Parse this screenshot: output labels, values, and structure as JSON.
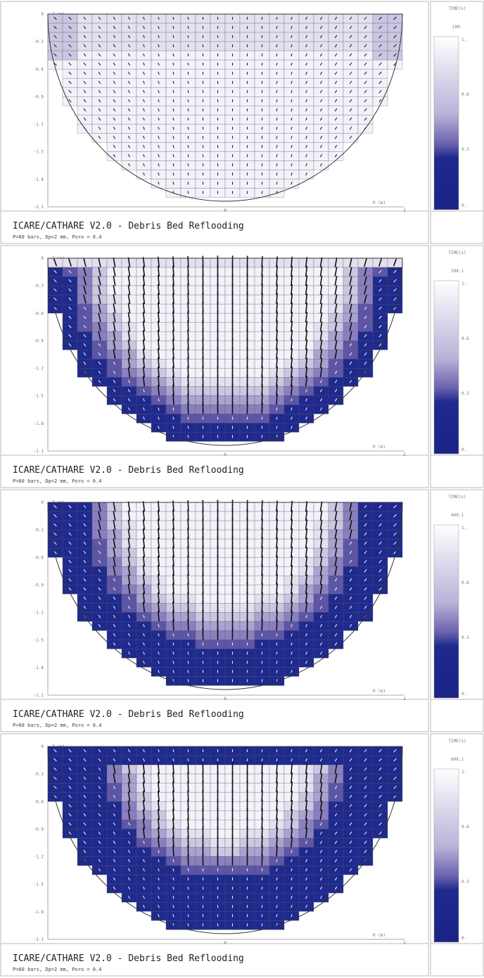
{
  "panels": [
    {
      "time_header": "TIME(s)",
      "time": "100.",
      "y_axis_label": "Z (m)",
      "x_axis_label": "R (m)",
      "y_ticks": [
        "0",
        "-0.3",
        "-0.6",
        "-0.9",
        "-1.2",
        "-1.5",
        "-1.8",
        "-2.1"
      ],
      "x_ticks": [
        "0",
        "2"
      ],
      "colorbar_ticks": [
        "1.",
        "0.6",
        "0.3",
        "0."
      ],
      "title": "ICARE/CATHARE V2.0 - Debris Bed Reflooding",
      "subtitle": "P=60 bars, Dp=2 mm, Poro = 0.4"
    },
    {
      "time_header": "TIME(s)",
      "time": "200.1",
      "y_axis_label": "Z (m)",
      "x_axis_label": "R (m)",
      "y_ticks": [
        "0",
        "-0.3",
        "-0.6",
        "-0.9",
        "-1.2",
        "-1.5",
        "-1.8",
        "-2.1"
      ],
      "x_ticks": [
        "0",
        "2"
      ],
      "colorbar_ticks": [
        "1.",
        "0.6",
        "0.3",
        "0."
      ],
      "title": "ICARE/CATHARE V2.0 - Debris Bed Reflooding",
      "subtitle": "P=60 bars, Dp=2 mm, Poro = 0.4"
    },
    {
      "time_header": "TIME(s)",
      "time": "400.1",
      "y_axis_label": "Z (m)",
      "x_axis_label": "R (m)",
      "y_ticks": [
        "0",
        "-0.3",
        "-0.6",
        "-0.9",
        "-1.2",
        "-1.5",
        "-1.8",
        "-2.1"
      ],
      "x_ticks": [
        "0",
        "2"
      ],
      "colorbar_ticks": [
        "1.",
        "0.6",
        "0.3",
        "0."
      ],
      "title": "ICARE/CATHARE V2.0 - Debris Bed Reflooding",
      "subtitle": "P=60 bars, Dp=2 mm, Poro = 0.4"
    },
    {
      "time_header": "TIME(s)",
      "time": "600.1",
      "y_axis_label": "Z (m)",
      "x_axis_label": "R (m)",
      "y_ticks": [
        "0",
        "-0.3",
        "-0.6",
        "-0.9",
        "-1.2",
        "-1.5",
        "-1.8",
        "-2.1"
      ],
      "x_ticks": [
        "0",
        "2"
      ],
      "colorbar_ticks": [
        "1.",
        "0.6",
        "0.3",
        "0."
      ],
      "title": "ICARE/CATHARE V2.0 - Debris Bed Reflooding",
      "subtitle": "P=60 bars, Dp=2 mm, Poro = 0.4"
    }
  ]
}
